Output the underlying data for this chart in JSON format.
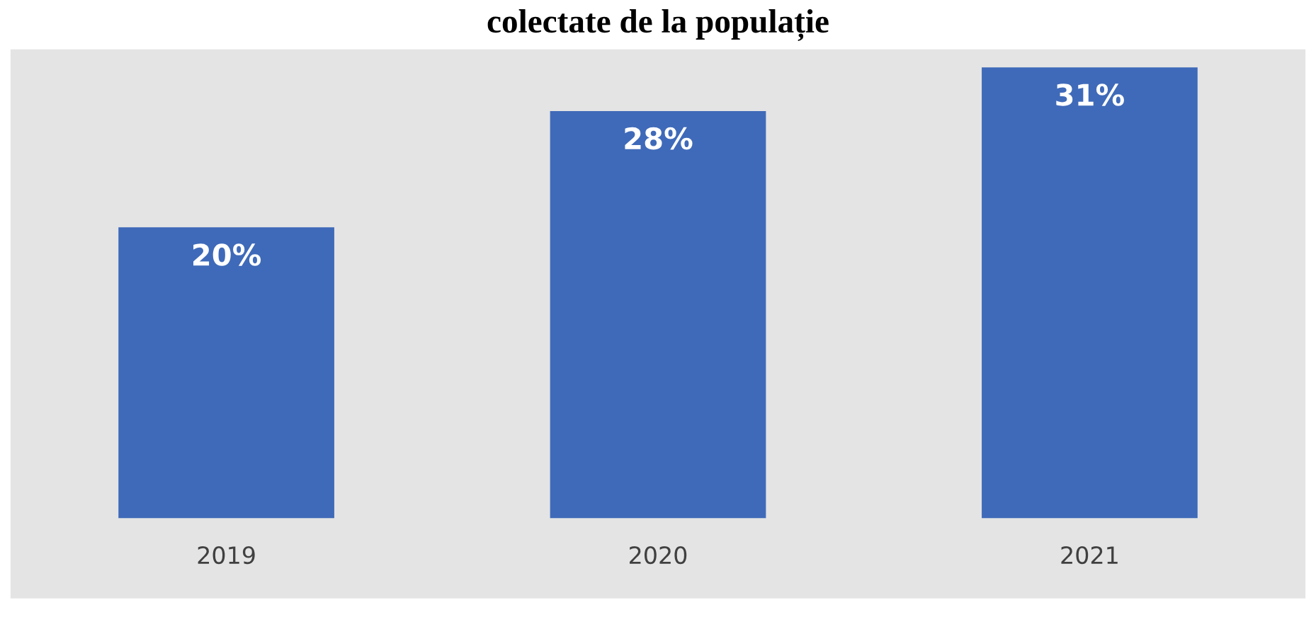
{
  "chart_data": {
    "type": "bar",
    "title": "colectate de la populație",
    "categories": [
      "2019",
      "2020",
      "2021"
    ],
    "values": [
      20,
      28,
      31
    ],
    "color": "#3f6ab9",
    "value_labels": [
      "20%",
      "28%",
      "31%"
    ]
  }
}
